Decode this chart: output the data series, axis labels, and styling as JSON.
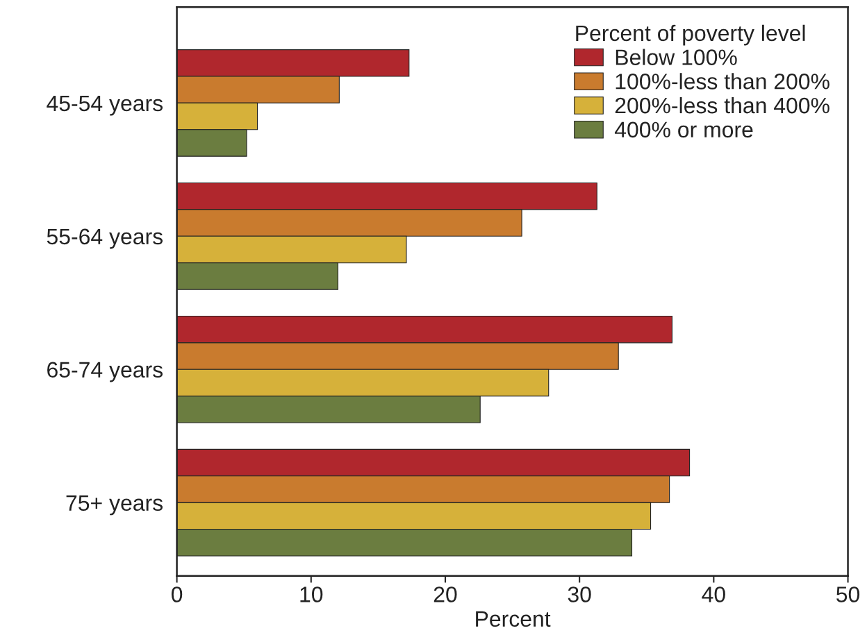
{
  "chart_data": {
    "type": "bar",
    "orientation": "horizontal",
    "xlabel": "Percent",
    "legend_title": "Percent of poverty level",
    "legend": "top right",
    "grid": false,
    "categories": [
      "45-54 years",
      "55-64 years",
      "65-74 years",
      "75+ years"
    ],
    "xlim": [
      0,
      50
    ],
    "xticks": [
      0,
      10,
      20,
      30,
      40,
      50
    ],
    "series": [
      {
        "name": "Below 100%",
        "color": "#b0272d",
        "values": [
          17.3,
          31.3,
          36.9,
          38.2
        ]
      },
      {
        "name": "100%-less than 200%",
        "color": "#c97b2e",
        "values": [
          12.1,
          25.7,
          32.9,
          36.7
        ]
      },
      {
        "name": "200%-less than 400%",
        "color": "#d6b13a",
        "values": [
          6.0,
          17.1,
          27.7,
          35.3
        ]
      },
      {
        "name": "400% or more",
        "color": "#6b7d40",
        "values": [
          5.2,
          12.0,
          22.6,
          33.9
        ]
      }
    ]
  }
}
